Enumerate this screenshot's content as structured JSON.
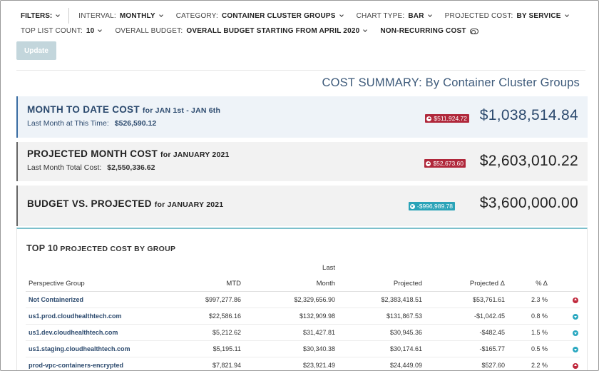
{
  "filters": {
    "label": "FILTERS:",
    "interval": {
      "label": "INTERVAL:",
      "value": "MONTHLY"
    },
    "category": {
      "label": "CATEGORY:",
      "value": "CONTAINER CLUSTER GROUPS"
    },
    "chart_type": {
      "label": "CHART TYPE:",
      "value": "BAR"
    },
    "projected_cost": {
      "label": "PROJECTED COST:",
      "value": "BY SERVICE"
    },
    "top_list_count": {
      "label": "TOP LIST COUNT:",
      "value": "10"
    },
    "overall_budget": {
      "label": "OVERALL BUDGET:",
      "value": "OVERALL BUDGET STARTING FROM APRIL 2020"
    },
    "non_recurring": {
      "label": "NON-RECURRING COST"
    },
    "update_label": "Update"
  },
  "summary_title": "COST SUMMARY: By Container Cluster Groups",
  "cards": {
    "mtd": {
      "title": "MONTH TO DATE COST",
      "period": "for JAN 1st - JAN 6th",
      "sub_label": "Last Month at This Time:",
      "sub_value": "$526,590.12",
      "badge": "$511,924.72",
      "amount": "$1,038,514.84"
    },
    "projected": {
      "title": "PROJECTED MONTH COST",
      "period": "for JANUARY 2021",
      "sub_label": "Last Month Total Cost:",
      "sub_value": "$2,550,336.62",
      "badge": "$52,673.60",
      "amount": "$2,603,010.22"
    },
    "budget": {
      "title": "BUDGET VS. PROJECTED",
      "period": "for JANUARY 2021",
      "badge": "-$996,989.78",
      "amount": "$3,600,000.00"
    }
  },
  "table": {
    "title_big": "TOP 10",
    "title_small": "PROJECTED COST BY GROUP",
    "headers": {
      "group": "Perspective Group",
      "mtd": "MTD",
      "last_month_1": "Last",
      "last_month_2": "Month",
      "projected": "Projected",
      "projected_delta": "Projected Δ",
      "pct_delta": "% Δ"
    },
    "rows": [
      {
        "group": "Not Containerized",
        "mtd": "$997,277.86",
        "last_month": "$2,329,656.90",
        "projected": "$2,383,418.51",
        "delta": "$53,761.61",
        "pct": "2.3 %",
        "dir": "up"
      },
      {
        "group": "us1.prod.cloudhealthtech.com",
        "mtd": "$22,586.16",
        "last_month": "$132,909.98",
        "projected": "$131,867.53",
        "delta": "-$1,042.45",
        "pct": "0.8 %",
        "dir": "down"
      },
      {
        "group": "us1.dev.cloudhealthtech.com",
        "mtd": "$5,212.62",
        "last_month": "$31,427.81",
        "projected": "$30,945.36",
        "delta": "-$482.45",
        "pct": "1.5 %",
        "dir": "down"
      },
      {
        "group": "us1.staging.cloudhealthtech.com",
        "mtd": "$5,195.11",
        "last_month": "$30,340.38",
        "projected": "$30,174.61",
        "delta": "-$165.77",
        "pct": "0.5 %",
        "dir": "down"
      },
      {
        "group": "prod-vpc-containers-encrypted",
        "mtd": "$7,821.94",
        "last_month": "$23,921.49",
        "projected": "$24,449.09",
        "delta": "$527.60",
        "pct": "2.2 %",
        "dir": "up"
      }
    ]
  },
  "colors": {
    "accent": "#2c4a6e",
    "badge_up": "#b0283b",
    "badge_down": "#2aa3b8",
    "panel_top_border": "#7cc0cc"
  }
}
